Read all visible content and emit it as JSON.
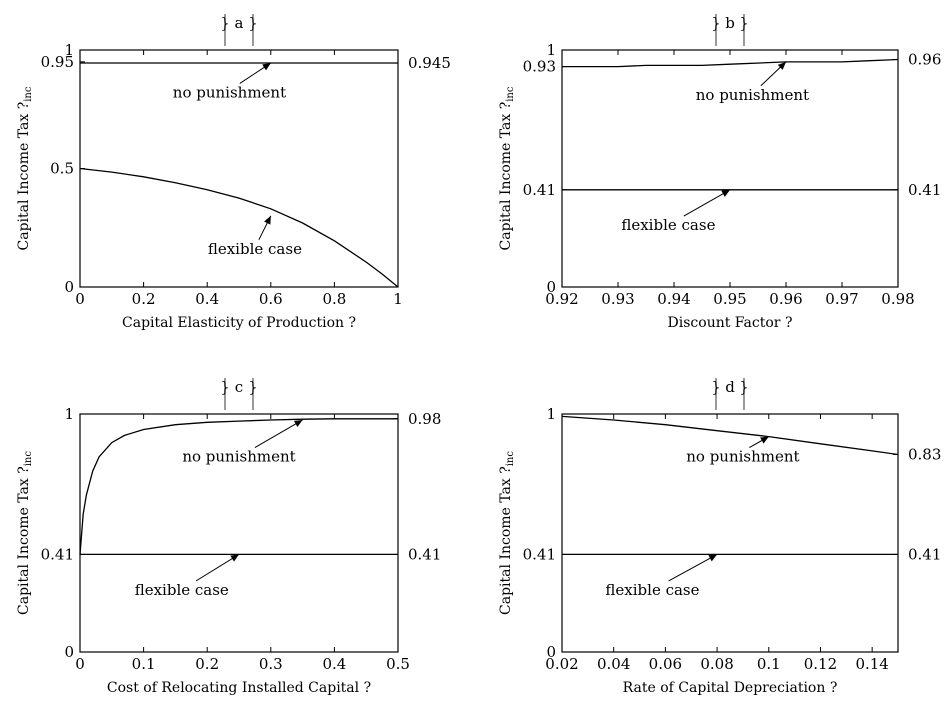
{
  "chart_data": [
    {
      "panel": "a",
      "type": "line",
      "title": "a",
      "xlabel": "Capital Elasticity of Production ?",
      "ylabel": "Capital Income Tax ?",
      "ylabel_sub": "inc",
      "xlim": [
        0,
        1
      ],
      "ylim": [
        0,
        1
      ],
      "x_ticks": [
        0,
        0.2,
        0.4,
        0.6,
        0.8,
        1
      ],
      "x_tick_labels": [
        "0",
        "0.2",
        "0.4",
        "0.6",
        "0.8",
        "1"
      ],
      "y_ticks": [
        0,
        0.5,
        0.95,
        1
      ],
      "y_tick_labels": [
        "0",
        "0.5",
        "0.95",
        "1"
      ],
      "right_labels": [
        {
          "y": 0.945,
          "text": "0.945"
        }
      ],
      "series": [
        {
          "name": "no punishment",
          "x": [
            0,
            0.2,
            0.4,
            0.6,
            0.8,
            1
          ],
          "y": [
            0.945,
            0.945,
            0.945,
            0.945,
            0.945,
            0.945
          ]
        },
        {
          "name": "flexible case",
          "x": [
            0,
            0.1,
            0.2,
            0.3,
            0.4,
            0.5,
            0.6,
            0.7,
            0.8,
            0.9,
            0.95,
            1
          ],
          "y": [
            0.5,
            0.485,
            0.465,
            0.44,
            0.41,
            0.375,
            0.33,
            0.27,
            0.195,
            0.105,
            0.055,
            0
          ]
        }
      ],
      "annotations": [
        {
          "text": "no punishment",
          "label_at": [
            0.47,
            0.8
          ],
          "arrow_to": [
            0.6,
            0.945
          ]
        },
        {
          "text": "flexible case",
          "label_at": [
            0.55,
            0.14
          ],
          "arrow_to": [
            0.6,
            0.3
          ]
        }
      ]
    },
    {
      "panel": "b",
      "type": "line",
      "title": "b",
      "xlabel": "Discount Factor ?",
      "ylabel": "Capital Income Tax ?",
      "ylabel_sub": "inc",
      "xlim": [
        0.92,
        0.98
      ],
      "ylim": [
        0,
        1
      ],
      "x_ticks": [
        0.92,
        0.93,
        0.94,
        0.95,
        0.96,
        0.97,
        0.98
      ],
      "x_tick_labels": [
        "0.92",
        "0.93",
        "0.94",
        "0.95",
        "0.96",
        "0.97",
        "0.98"
      ],
      "y_ticks": [
        0,
        0.41,
        0.93,
        1
      ],
      "y_tick_labels": [
        "0",
        "0.41",
        "0.93",
        "1"
      ],
      "right_labels": [
        {
          "y": 0.96,
          "text": "0.96"
        },
        {
          "y": 0.41,
          "text": "0.41"
        }
      ],
      "series": [
        {
          "name": "no punishment",
          "x": [
            0.92,
            0.93,
            0.935,
            0.945,
            0.95,
            0.96,
            0.97,
            0.975,
            0.98
          ],
          "y": [
            0.93,
            0.93,
            0.935,
            0.935,
            0.94,
            0.95,
            0.95,
            0.955,
            0.96
          ]
        },
        {
          "name": "flexible case",
          "x": [
            0.92,
            0.98
          ],
          "y": [
            0.41,
            0.41
          ]
        }
      ],
      "annotations": [
        {
          "text": "no punishment",
          "label_at": [
            0.954,
            0.79
          ],
          "arrow_to": [
            0.96,
            0.95
          ]
        },
        {
          "text": "flexible case",
          "label_at": [
            0.939,
            0.24
          ],
          "arrow_to": [
            0.95,
            0.41
          ]
        }
      ]
    },
    {
      "panel": "c",
      "type": "line",
      "title": "c",
      "xlabel": "Cost of Relocating Installed Capital ?",
      "ylabel": "Capital Income Tax ?",
      "ylabel_sub": "inc",
      "xlim": [
        0,
        0.5
      ],
      "ylim": [
        0,
        1
      ],
      "x_ticks": [
        0,
        0.1,
        0.2,
        0.3,
        0.4,
        0.5
      ],
      "x_tick_labels": [
        "0",
        "0.1",
        "0.2",
        "0.3",
        "0.4",
        "0.5"
      ],
      "y_ticks": [
        0,
        0.41,
        1
      ],
      "y_tick_labels": [
        "0",
        "0.41",
        "1"
      ],
      "right_labels": [
        {
          "y": 0.98,
          "text": "0.98"
        },
        {
          "y": 0.41,
          "text": "0.41"
        }
      ],
      "series": [
        {
          "name": "no punishment",
          "x": [
            0,
            0.005,
            0.01,
            0.02,
            0.03,
            0.05,
            0.07,
            0.1,
            0.15,
            0.2,
            0.25,
            0.3,
            0.35,
            0.4,
            0.45,
            0.5
          ],
          "y": [
            0.41,
            0.58,
            0.66,
            0.76,
            0.82,
            0.88,
            0.91,
            0.935,
            0.955,
            0.965,
            0.97,
            0.975,
            0.978,
            0.98,
            0.98,
            0.98
          ]
        },
        {
          "name": "flexible case",
          "x": [
            0,
            0.5
          ],
          "y": [
            0.41,
            0.41
          ]
        }
      ],
      "annotations": [
        {
          "text": "no punishment",
          "label_at": [
            0.25,
            0.8
          ],
          "arrow_to": [
            0.35,
            0.975
          ]
        },
        {
          "text": "flexible case",
          "label_at": [
            0.16,
            0.24
          ],
          "arrow_to": [
            0.25,
            0.41
          ]
        }
      ]
    },
    {
      "panel": "d",
      "type": "line",
      "title": "d",
      "xlabel": "Rate of Capital Depreciation ?",
      "ylabel": "Capital Income Tax ?",
      "ylabel_sub": "inc",
      "xlim": [
        0.02,
        0.15
      ],
      "ylim": [
        0,
        1
      ],
      "x_ticks": [
        0.02,
        0.04,
        0.06,
        0.08,
        0.1,
        0.12,
        0.14
      ],
      "x_tick_labels": [
        "0.02",
        "0.04",
        "0.06",
        "0.08",
        "0.1",
        "0.12",
        "0.14"
      ],
      "y_ticks": [
        0,
        0.41,
        1
      ],
      "y_tick_labels": [
        "0",
        "0.41",
        "1"
      ],
      "right_labels": [
        {
          "y": 0.83,
          "text": "0.83"
        },
        {
          "y": 0.41,
          "text": "0.41"
        }
      ],
      "series": [
        {
          "name": "no punishment",
          "x": [
            0.02,
            0.04,
            0.06,
            0.08,
            0.1,
            0.12,
            0.14,
            0.15
          ],
          "y": [
            0.99,
            0.975,
            0.955,
            0.93,
            0.905,
            0.875,
            0.845,
            0.83
          ]
        },
        {
          "name": "flexible case",
          "x": [
            0.02,
            0.15
          ],
          "y": [
            0.41,
            0.41
          ]
        }
      ],
      "annotations": [
        {
          "text": "no punishment",
          "label_at": [
            0.09,
            0.8
          ],
          "arrow_to": [
            0.1,
            0.905
          ]
        },
        {
          "text": "flexible case",
          "label_at": [
            0.055,
            0.24
          ],
          "arrow_to": [
            0.08,
            0.41
          ]
        }
      ]
    }
  ]
}
